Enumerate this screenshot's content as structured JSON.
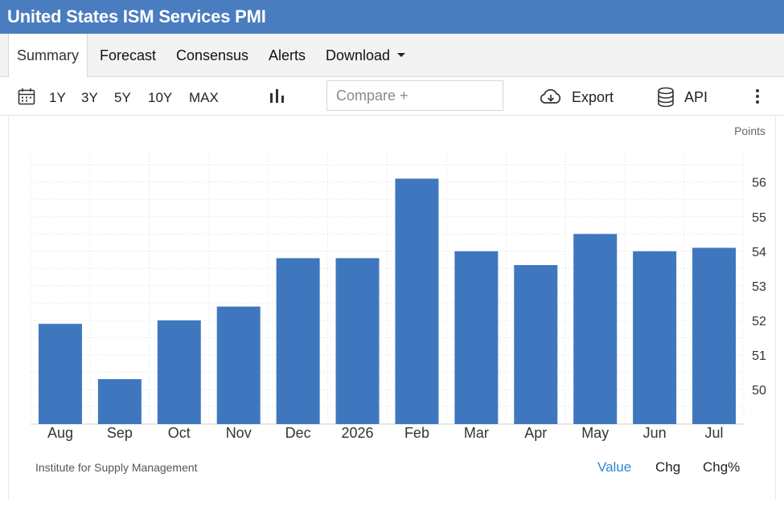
{
  "header": {
    "title": "United States ISM Services PMI"
  },
  "tabs": [
    {
      "label": "Summary"
    },
    {
      "label": "Forecast"
    },
    {
      "label": "Consensus"
    },
    {
      "label": "Alerts"
    },
    {
      "label": "Download"
    }
  ],
  "toolbar": {
    "ranges": [
      "1Y",
      "3Y",
      "5Y",
      "10Y",
      "MAX"
    ],
    "compare_placeholder": "Compare +",
    "export_label": "Export",
    "api_label": "API",
    "icons": [
      "calendar-icon",
      "bar-chart-icon",
      "cloud-download-icon",
      "database-icon",
      "more-vertical-icon"
    ]
  },
  "chart_data": {
    "type": "bar",
    "categories": [
      "Aug",
      "Sep",
      "Oct",
      "Nov",
      "Dec",
      "2026",
      "Feb",
      "Mar",
      "Apr",
      "May",
      "Jun",
      "Jul"
    ],
    "values": [
      51.9,
      50.3,
      52.0,
      52.4,
      53.8,
      53.8,
      56.1,
      54.0,
      53.6,
      54.5,
      54.0,
      54.1
    ],
    "ylabel": "Points",
    "ylim": [
      49.0,
      56.9
    ],
    "yticks": [
      50,
      51,
      52,
      53,
      54,
      55,
      56
    ],
    "y_axis_side": "right",
    "grid": true,
    "bar_color": "#3f77bf"
  },
  "footer": {
    "source": "Institute for Supply Management",
    "options": [
      "Value",
      "Chg",
      "Chg%"
    ],
    "active_option": "Value"
  }
}
